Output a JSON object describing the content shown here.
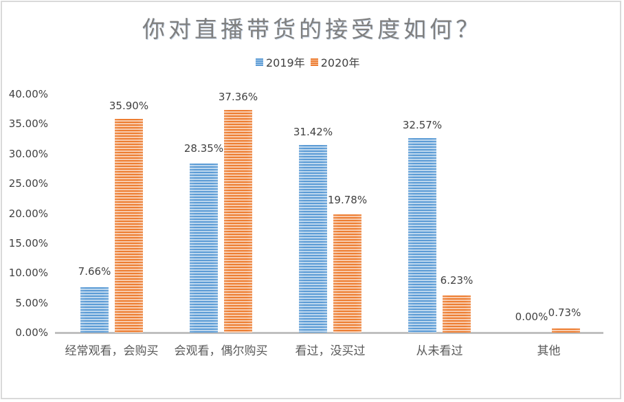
{
  "chart_data": {
    "type": "bar",
    "title": "你对直播带货的接受度如何？",
    "categories": [
      "经常观看，会购买",
      "会观看，偶尔购买",
      "看过，没买过",
      "从未看过",
      "其他"
    ],
    "series": [
      {
        "name": "2019年",
        "color": "#5b9bd5",
        "values": [
          7.66,
          28.35,
          31.42,
          32.57,
          0.0
        ],
        "labels": [
          "7.66%",
          "28.35%",
          "31.42%",
          "32.57%",
          "0.00%"
        ]
      },
      {
        "name": "2020年",
        "color": "#ed7d31",
        "values": [
          35.9,
          37.36,
          19.78,
          6.23,
          0.73
        ],
        "labels": [
          "35.90%",
          "37.36%",
          "19.78%",
          "6.23%",
          "0.73%"
        ]
      }
    ],
    "yticks": [
      "0.00%",
      "5.00%",
      "10.00%",
      "15.00%",
      "20.00%",
      "25.00%",
      "30.00%",
      "35.00%",
      "40.00%"
    ],
    "xlabel": "",
    "ylabel": "",
    "ylim": [
      0,
      40
    ],
    "grid": false,
    "legend_position": "top",
    "pattern": "horizontal-stripes"
  }
}
